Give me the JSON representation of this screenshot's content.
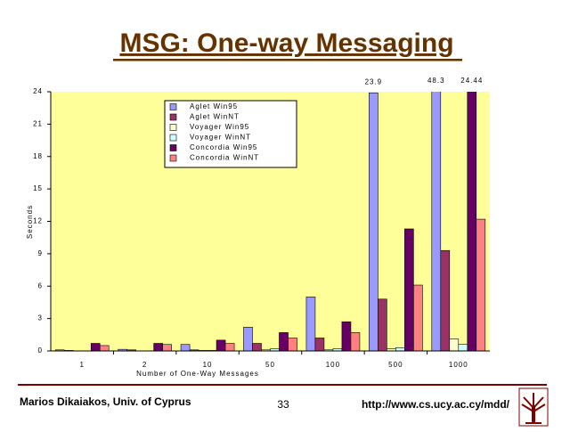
{
  "slide": {
    "title": "MSG: One-way Messaging",
    "footer_left": "Marios Dikaiakos, Univ. of Cyprus",
    "page_number": "33",
    "footer_right": "http://www.cs.ucy.ac.cy/mdd/"
  },
  "chart_data": {
    "type": "bar",
    "xlabel": "Number of One-Way Messages",
    "ylabel": "Seconds",
    "categories": [
      "1",
      "2",
      "10",
      "50",
      "100",
      "500",
      "1000"
    ],
    "series": [
      {
        "name": "Aglet Win95",
        "color": "#9999ff",
        "values": [
          0.1,
          0.15,
          0.6,
          2.2,
          5.0,
          23.9,
          48.3
        ],
        "value_labels": [
          null,
          null,
          null,
          null,
          null,
          "23.9",
          "48.3"
        ]
      },
      {
        "name": "Aglet WinNT",
        "color": "#993366",
        "values": [
          0.05,
          0.1,
          0.1,
          0.7,
          1.2,
          4.8,
          9.3
        ]
      },
      {
        "name": "Voyager Win95",
        "color": "#ffffcc",
        "values": [
          0,
          0,
          0.05,
          0.1,
          0.1,
          0.2,
          1.1
        ]
      },
      {
        "name": "Voyager WinNT",
        "color": "#ccffff",
        "values": [
          0,
          0,
          0.05,
          0.2,
          0.2,
          0.3,
          0.6
        ]
      },
      {
        "name": "Concordia Win95",
        "color": "#660066",
        "values": [
          0.7,
          0.7,
          1.0,
          1.7,
          2.7,
          11.3,
          24.44
        ],
        "value_labels": [
          null,
          null,
          null,
          null,
          null,
          null,
          "24.44"
        ]
      },
      {
        "name": "Concordia WinNT",
        "color": "#ff8080",
        "values": [
          0.5,
          0.6,
          0.7,
          1.2,
          1.7,
          6.1,
          12.2
        ]
      }
    ],
    "ylim": [
      0,
      24
    ],
    "yticks": [
      0,
      3,
      6,
      9,
      12,
      15,
      18,
      21,
      24
    ],
    "grid": false,
    "legend": "top-left",
    "plot_background": "#ffff99"
  }
}
